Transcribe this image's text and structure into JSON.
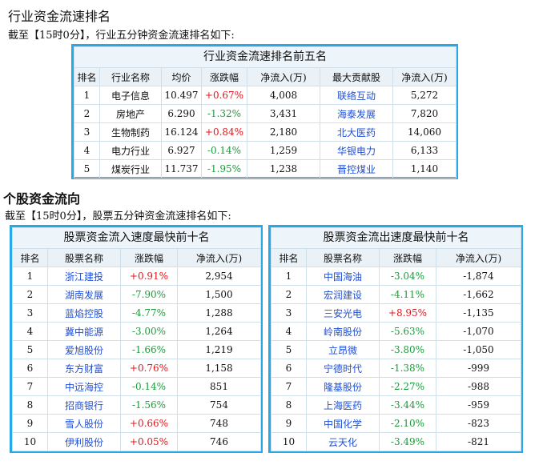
{
  "industry": {
    "heading": "行业资金流速排名",
    "intro": "截至【15时0分】，行业五分钟资金流速排名如下:",
    "table_title": "行业资金流速排名前五名",
    "columns": [
      "排名",
      "行业名称",
      "均价",
      "涨跌幅",
      "净流入(万)",
      "最大贡献股",
      "净流入(万)"
    ],
    "rows": [
      {
        "rank": "1",
        "name": "电子信息",
        "avg": "10.497",
        "chg": "+0.67%",
        "dir": "up",
        "inflow": "4,008",
        "stock": "联络互动",
        "stock_inflow": "5,272"
      },
      {
        "rank": "2",
        "name": "房地产",
        "avg": "6.290",
        "chg": "-1.32%",
        "dir": "dn",
        "inflow": "3,431",
        "stock": "海泰发展",
        "stock_inflow": "7,820"
      },
      {
        "rank": "3",
        "name": "生物制药",
        "avg": "16.124",
        "chg": "+0.84%",
        "dir": "up",
        "inflow": "2,180",
        "stock": "北大医药",
        "stock_inflow": "14,060"
      },
      {
        "rank": "4",
        "name": "电力行业",
        "avg": "6.927",
        "chg": "-0.14%",
        "dir": "dn",
        "inflow": "1,259",
        "stock": "华银电力",
        "stock_inflow": "6,133"
      },
      {
        "rank": "5",
        "name": "煤炭行业",
        "avg": "11.737",
        "chg": "-1.95%",
        "dir": "dn",
        "inflow": "1,238",
        "stock": "晋控煤业",
        "stock_inflow": "1,140"
      }
    ]
  },
  "stocks": {
    "heading": "个股资金流向",
    "intro": "截至【15时0分】，股票五分钟资金流速排名如下:",
    "columns": [
      "排名",
      "股票名称",
      "涨跌幅",
      "净流入(万)"
    ],
    "inflow_title": "股票资金流入速度最快前十名",
    "inflow_rows": [
      {
        "rank": "1",
        "name": "浙江建投",
        "chg": "+0.91%",
        "dir": "up",
        "net": "2,954"
      },
      {
        "rank": "2",
        "name": "湖南发展",
        "chg": "-7.90%",
        "dir": "dn",
        "net": "1,500"
      },
      {
        "rank": "3",
        "name": "蓝焰控股",
        "chg": "-4.77%",
        "dir": "dn",
        "net": "1,288"
      },
      {
        "rank": "4",
        "name": "冀中能源",
        "chg": "-3.00%",
        "dir": "dn",
        "net": "1,264"
      },
      {
        "rank": "5",
        "name": "爱旭股份",
        "chg": "-1.66%",
        "dir": "dn",
        "net": "1,219"
      },
      {
        "rank": "6",
        "name": "东方财富",
        "chg": "+0.76%",
        "dir": "up",
        "net": "1,158"
      },
      {
        "rank": "7",
        "name": "中远海控",
        "chg": "-0.14%",
        "dir": "dn",
        "net": "851"
      },
      {
        "rank": "8",
        "name": "招商银行",
        "chg": "-1.56%",
        "dir": "dn",
        "net": "754"
      },
      {
        "rank": "9",
        "name": "雪人股份",
        "chg": "+0.66%",
        "dir": "up",
        "net": "748"
      },
      {
        "rank": "10",
        "name": "伊利股份",
        "chg": "+0.05%",
        "dir": "up",
        "net": "746"
      }
    ],
    "outflow_title": "股票资金流出速度最快前十名",
    "outflow_rows": [
      {
        "rank": "1",
        "name": "中国海油",
        "chg": "-3.04%",
        "dir": "dn",
        "net": "-1,874"
      },
      {
        "rank": "2",
        "name": "宏润建设",
        "chg": "-4.11%",
        "dir": "dn",
        "net": "-1,662"
      },
      {
        "rank": "3",
        "name": "三安光电",
        "chg": "+8.95%",
        "dir": "up",
        "net": "-1,135"
      },
      {
        "rank": "4",
        "name": "岭南股份",
        "chg": "-5.63%",
        "dir": "dn",
        "net": "-1,070"
      },
      {
        "rank": "5",
        "name": "立昂微",
        "chg": "-3.80%",
        "dir": "dn",
        "net": "-1,050"
      },
      {
        "rank": "6",
        "name": "宁德时代",
        "chg": "-1.38%",
        "dir": "dn",
        "net": "-999"
      },
      {
        "rank": "7",
        "name": "隆基股份",
        "chg": "-2.27%",
        "dir": "dn",
        "net": "-988"
      },
      {
        "rank": "8",
        "name": "上海医药",
        "chg": "-3.44%",
        "dir": "dn",
        "net": "-959"
      },
      {
        "rank": "9",
        "name": "中国化学",
        "chg": "-2.10%",
        "dir": "dn",
        "net": "-823"
      },
      {
        "rank": "10",
        "name": "云天化",
        "chg": "-3.49%",
        "dir": "dn",
        "net": "-821"
      }
    ]
  },
  "colors": {
    "up": "#e0161b",
    "down": "#1a9c3a",
    "link": "#1f4fd6",
    "frame": "#29a8e6"
  }
}
